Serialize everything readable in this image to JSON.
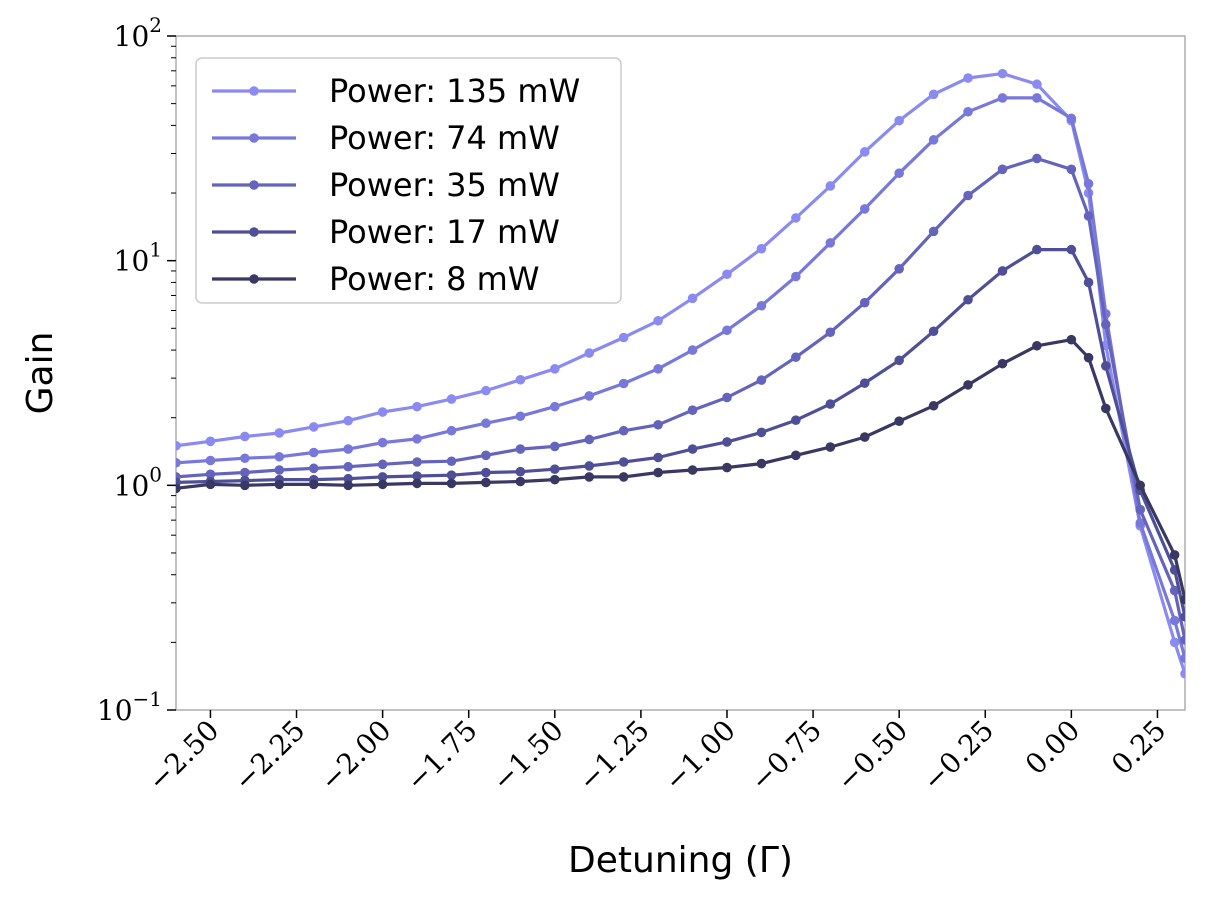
{
  "chart_data": {
    "type": "line",
    "xlabel": "Detuning (Γ)",
    "ylabel": "Gain",
    "yscale": "log",
    "xlim": [
      -2.6,
      0.33
    ],
    "ylim": [
      0.1,
      100
    ],
    "xticks": [
      -2.5,
      -2.25,
      -2.0,
      -1.75,
      -1.5,
      -1.25,
      -1.0,
      -0.75,
      -0.5,
      -0.25,
      0.0,
      0.25
    ],
    "xtick_labels": [
      "−2.50",
      "−2.25",
      "−2.00",
      "−1.75",
      "−1.50",
      "−1.25",
      "−1.00",
      "−0.75",
      "−0.50",
      "−0.25",
      "0.00",
      "0.25"
    ],
    "yticks": [
      {
        "base": "10",
        "exp": "−1",
        "value": 0.1
      },
      {
        "base": "10",
        "exp": "0",
        "value": 1
      },
      {
        "base": "10",
        "exp": "1",
        "value": 10
      },
      {
        "base": "10",
        "exp": "2",
        "value": 100
      }
    ],
    "legend_position": "top-left",
    "grid": false,
    "x": [
      -2.6,
      -2.5,
      -2.4,
      -2.3,
      -2.2,
      -2.1,
      -2.0,
      -1.9,
      -1.8,
      -1.7,
      -1.6,
      -1.5,
      -1.4,
      -1.3,
      -1.2,
      -1.1,
      -1.0,
      -0.9,
      -0.8,
      -0.7,
      -0.6,
      -0.5,
      -0.4,
      -0.3,
      -0.2,
      -0.1,
      0.0,
      0.05,
      0.1,
      0.2,
      0.3,
      0.33
    ],
    "series": [
      {
        "name": "Power: 135 mW",
        "color": "#8a8af0",
        "values": [
          1.5,
          1.57,
          1.65,
          1.71,
          1.82,
          1.94,
          2.12,
          2.24,
          2.42,
          2.64,
          2.95,
          3.3,
          3.88,
          4.55,
          5.4,
          6.8,
          8.7,
          11.3,
          15.5,
          21.5,
          30.5,
          42,
          55,
          65,
          68,
          61,
          42,
          20,
          4.2,
          0.66,
          0.2,
          0.145
        ]
      },
      {
        "name": "Power: 74 mW",
        "color": "#7878da",
        "values": [
          1.26,
          1.29,
          1.32,
          1.34,
          1.4,
          1.45,
          1.55,
          1.61,
          1.75,
          1.89,
          2.03,
          2.24,
          2.5,
          2.84,
          3.3,
          4.0,
          4.9,
          6.3,
          8.5,
          12,
          17,
          24.5,
          34.5,
          46,
          53,
          53,
          43,
          22,
          5.8,
          0.68,
          0.25,
          0.17
        ]
      },
      {
        "name": "Power: 35 mW",
        "color": "#6464bc",
        "values": [
          1.09,
          1.12,
          1.14,
          1.17,
          1.19,
          1.21,
          1.24,
          1.27,
          1.28,
          1.36,
          1.45,
          1.49,
          1.6,
          1.75,
          1.86,
          2.16,
          2.46,
          2.94,
          3.72,
          4.8,
          6.5,
          9.2,
          13.5,
          19.5,
          25.5,
          28.5,
          25.5,
          15.8,
          5.2,
          0.78,
          0.34,
          0.205
        ]
      },
      {
        "name": "Power: 17 mW",
        "color": "#4f4f98",
        "values": [
          1.03,
          1.04,
          1.05,
          1.06,
          1.06,
          1.07,
          1.09,
          1.1,
          1.11,
          1.14,
          1.15,
          1.18,
          1.22,
          1.27,
          1.33,
          1.45,
          1.56,
          1.72,
          1.95,
          2.3,
          2.85,
          3.6,
          4.85,
          6.7,
          9.0,
          11.2,
          11.2,
          8.0,
          3.4,
          0.95,
          0.42,
          0.26
        ]
      },
      {
        "name": "Power: 8 mW",
        "color": "#383862",
        "values": [
          0.97,
          1.01,
          1.0,
          1.01,
          1.01,
          1.0,
          1.01,
          1.02,
          1.02,
          1.03,
          1.04,
          1.06,
          1.09,
          1.09,
          1.14,
          1.17,
          1.2,
          1.25,
          1.36,
          1.48,
          1.64,
          1.93,
          2.26,
          2.8,
          3.48,
          4.18,
          4.45,
          3.7,
          2.2,
          1.0,
          0.49,
          0.31
        ]
      }
    ]
  }
}
